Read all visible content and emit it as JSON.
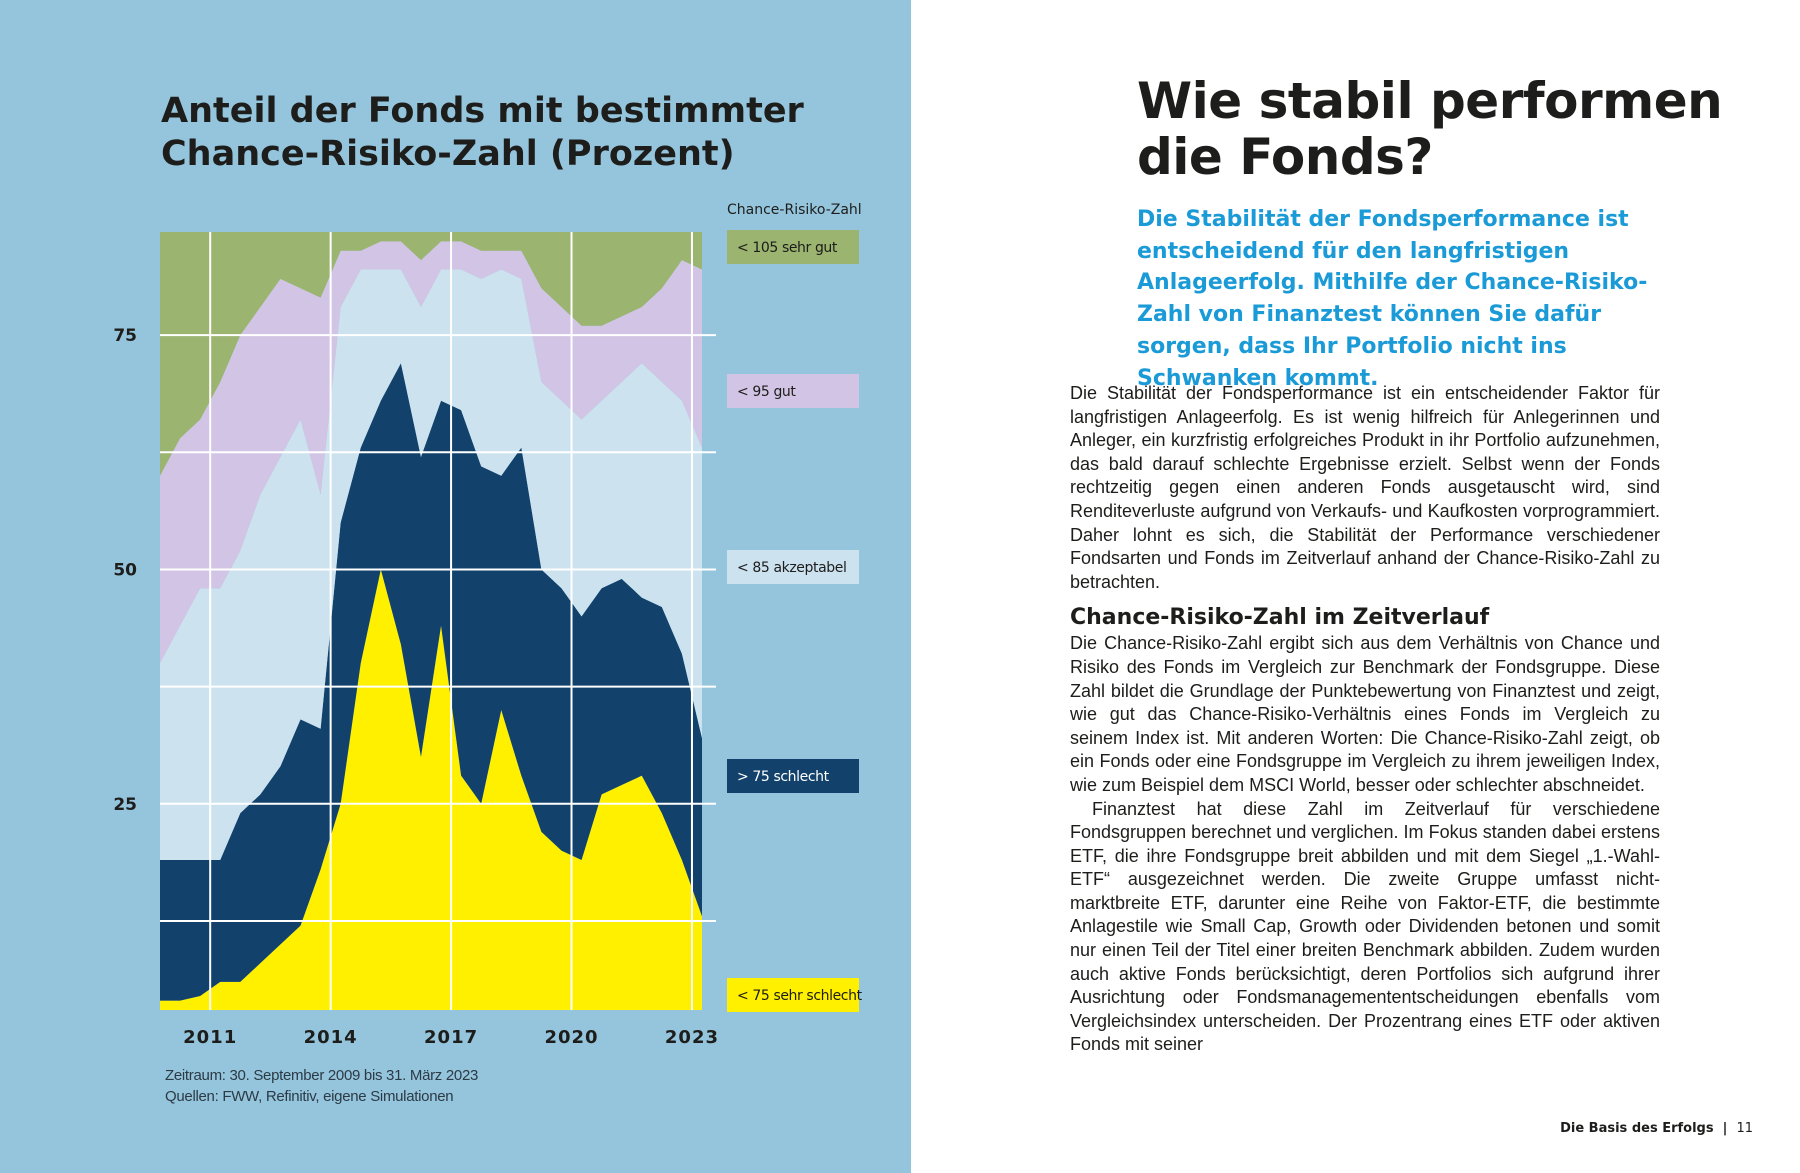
{
  "chart_data": {
    "type": "stacked-area",
    "title": [
      "Anteil der Fonds mit bestimmter",
      "Chance-Risiko-Zahl (Prozent)"
    ],
    "legend_title": "Chance-Risiko-Zahl",
    "x": [
      2009.75,
      2010.25,
      2010.75,
      2011.25,
      2011.75,
      2012.25,
      2012.75,
      2013.25,
      2013.75,
      2014.25,
      2014.75,
      2015.25,
      2015.75,
      2016.25,
      2016.75,
      2017.25,
      2017.75,
      2018.25,
      2018.75,
      2019.25,
      2019.75,
      2020.25,
      2020.75,
      2021.25,
      2021.75,
      2022.25,
      2022.75,
      2023.25
    ],
    "series": [
      {
        "name": "< 75 sehr schlecht",
        "color": "#fff000",
        "values": [
          4,
          4,
          4.5,
          6,
          6,
          8,
          10,
          12,
          18,
          25,
          40,
          50,
          42,
          30,
          44,
          28,
          25,
          35,
          28,
          22,
          20,
          19,
          26,
          27,
          28,
          24,
          19,
          13
        ]
      },
      {
        "name": "> 75 schlecht",
        "color": "#12426b",
        "values": [
          15,
          15,
          14.5,
          13,
          18,
          18,
          19,
          22,
          15,
          30,
          23,
          18,
          30,
          32,
          24,
          39,
          36,
          25,
          35,
          28,
          28,
          26,
          22,
          22,
          19,
          22,
          22,
          19
        ]
      },
      {
        "name": "< 85 akzeptabel",
        "color": "#cce2ef",
        "values": [
          21,
          25,
          29,
          29,
          28,
          32,
          33,
          32,
          25,
          23,
          19,
          14,
          10,
          16,
          14,
          15,
          20,
          22,
          18,
          20,
          20,
          21,
          20,
          21,
          25,
          24,
          27,
          31
        ]
      },
      {
        "name": "< 95 gut",
        "color": "#d2c4e4",
        "values": [
          20,
          20,
          18,
          22,
          23,
          20,
          19,
          14,
          21,
          6,
          2,
          3,
          3,
          5,
          3,
          3,
          3,
          2,
          3,
          10,
          10,
          10,
          8,
          7,
          6,
          10,
          15,
          19
        ]
      },
      {
        "name": "< 105 sehr gut",
        "color": "#9bb46f",
        "values": [
          26,
          22,
          20,
          16,
          11,
          8,
          5,
          6,
          7,
          2,
          2,
          1,
          1,
          3,
          1,
          1,
          2,
          2,
          2,
          6,
          8,
          10,
          10,
          9,
          8,
          6,
          3,
          4
        ]
      }
    ],
    "xlim": [
      2009.75,
      2023.25
    ],
    "xticks": [
      2011,
      2014,
      2017,
      2020,
      2023
    ],
    "ylim": [
      3,
      86
    ],
    "yticks": [
      25,
      50,
      75
    ],
    "minor_yticks": [
      12.5,
      37.5,
      62.5
    ],
    "grid": true,
    "notes": [
      "Zeitraum: 30. September 2009 bis 31. März 2023",
      "Quellen: FWW, Refinitiv, eigene Simulationen"
    ]
  },
  "article": {
    "heading": [
      "Wie stabil performen",
      "die Fonds?"
    ],
    "lead": "Die Stabilität der Fondsperformance ist entscheidend für den langfristigen Anlageerfolg. Mithilfe der Chance-Risiko-Zahl von Finanztest können Sie dafür sorgen, dass Ihr Portfolio nicht ins Schwanken kommt.",
    "paragraphs": [
      "Die Stabilität der Fondsperformance ist ein entscheidender Faktor für langfristigen Anlageerfolg. Es ist wenig hilfreich für Anlegerinnen und Anleger, ein kurzfristig erfolgreiches Produkt in ihr Portfolio aufzunehmen, das bald darauf schlechte Ergebnisse erzielt. Selbst wenn der Fonds rechtzeitig gegen einen anderen Fonds ausgetauscht wird, sind Renditeverluste aufgrund von Verkaufs- und Kaufkosten vorprogrammiert. Daher lohnt es sich, die Stabilität der Performance verschiedener Fondsarten und Fonds im Zeitverlauf anhand der Chance-Risiko-Zahl zu betrachten."
    ],
    "subheading": "Chance-Risiko-Zahl im Zeitverlauf",
    "section_paragraphs": [
      "Die Chance-Risiko-Zahl ergibt sich aus dem Verhältnis von Chance und Risiko des Fonds im Vergleich zur Benchmark der Fondsgruppe. Diese Zahl bildet die Grundlage der Punktebewertung von Finanztest und zeigt, wie gut das Chance-Risiko-Verhältnis eines Fonds im Vergleich zu seinem Index ist. Mit anderen Worten: Die Chance-Risiko-Zahl zeigt, ob ein Fonds oder eine Fondsgruppe im Vergleich zu ihrem jeweiligen Index, wie zum Beispiel dem MSCI World, besser oder schlechter abschneidet.",
      "Finanztest hat diese Zahl im Zeitverlauf für verschiedene Fondsgruppen berechnet und verglichen. Im Fokus standen dabei erstens ETF, die ihre Fondsgruppe breit abbilden und mit dem Siegel „1.-Wahl-ETF“ ausgezeichnet werden. Die zweite Gruppe umfasst nicht-marktbreite ETF, darunter eine Reihe von Faktor-ETF, die bestimmte Anlagestile wie Small Cap, Growth oder Dividenden betonen und somit nur einen Teil der Titel einer breiten Benchmark abbilden. Zudem wurden auch aktive Fonds berücksichtigt, deren Portfolios sich aufgrund ihrer Ausrichtung oder Fondsmanagemententscheidungen ebenfalls vom Vergleichsindex unterscheiden. Der Prozentrang eines ETF oder aktiven Fonds mit seiner"
    ]
  },
  "footer": {
    "section": "Die Basis des Erfolgs",
    "page": "11"
  }
}
